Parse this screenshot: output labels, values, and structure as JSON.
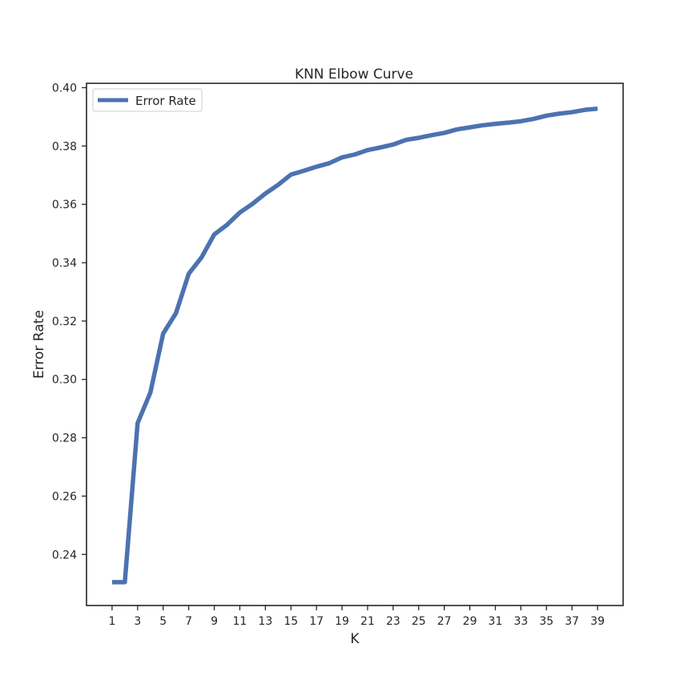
{
  "chart_data": {
    "type": "line",
    "title": "KNN Elbow Curve",
    "xlabel": "K",
    "ylabel": "Error Rate",
    "xlim": [
      -1,
      41
    ],
    "ylim": [
      0.2225,
      0.4015
    ],
    "xticks": [
      1,
      3,
      5,
      7,
      9,
      11,
      13,
      15,
      17,
      19,
      21,
      23,
      25,
      27,
      29,
      31,
      33,
      35,
      37,
      39
    ],
    "yticks": [
      0.24,
      0.26,
      0.28,
      0.3,
      0.32,
      0.34,
      0.36,
      0.38,
      0.4
    ],
    "ytick_labels": [
      "0.24",
      "0.26",
      "0.28",
      "0.30",
      "0.32",
      "0.34",
      "0.36",
      "0.38",
      "0.40"
    ],
    "grid": false,
    "legend_position": "top-left",
    "series": [
      {
        "name": "Error Rate",
        "color": "#4c72b0",
        "x": [
          1,
          2,
          3,
          4,
          5,
          6,
          7,
          8,
          9,
          10,
          11,
          12,
          13,
          14,
          15,
          16,
          17,
          18,
          19,
          20,
          21,
          22,
          23,
          24,
          25,
          26,
          27,
          28,
          29,
          30,
          31,
          32,
          33,
          34,
          35,
          36,
          37,
          38,
          39
        ],
        "y": [
          0.2305,
          0.2305,
          0.285,
          0.2955,
          0.3157,
          0.3227,
          0.3362,
          0.3418,
          0.3497,
          0.353,
          0.3572,
          0.3602,
          0.3637,
          0.3667,
          0.3702,
          0.3715,
          0.3729,
          0.3741,
          0.3761,
          0.3771,
          0.3786,
          0.3795,
          0.3805,
          0.3821,
          0.3828,
          0.3837,
          0.3845,
          0.3857,
          0.3864,
          0.3871,
          0.3876,
          0.388,
          0.3885,
          0.3893,
          0.3904,
          0.3911,
          0.3916,
          0.3924,
          0.3928
        ]
      }
    ]
  }
}
